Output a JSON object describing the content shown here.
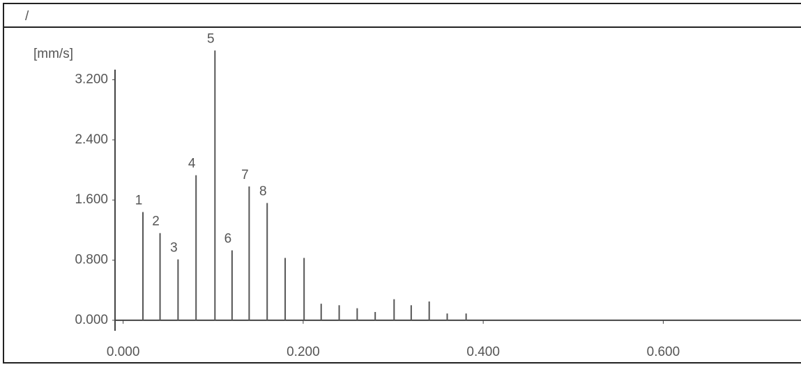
{
  "chart_data": {
    "type": "spectrum",
    "corner_text": "/",
    "y_label": "[mm/s]",
    "x": [
      0.022,
      0.041,
      0.061,
      0.081,
      0.102,
      0.121,
      0.14,
      0.16,
      0.18,
      0.201,
      0.22,
      0.24,
      0.26,
      0.28,
      0.301,
      0.32,
      0.34,
      0.36,
      0.381
    ],
    "values": [
      1.44,
      1.16,
      0.81,
      1.93,
      3.59,
      0.93,
      1.78,
      1.56,
      0.83,
      0.83,
      0.22,
      0.2,
      0.16,
      0.11,
      0.28,
      0.2,
      0.25,
      0.09,
      0.09
    ],
    "peak_labels": [
      "1",
      "2",
      "3",
      "4",
      "5",
      "6",
      "7",
      "8",
      null,
      null,
      null,
      null,
      null,
      null,
      null,
      null,
      null,
      null,
      null
    ],
    "color": "#555555",
    "xlim": [
      -0.009,
      0.753
    ],
    "ylim": [
      -0.14,
      3.9
    ],
    "xticks": [
      {
        "value": 0,
        "label": "0.000"
      },
      {
        "value": 0.2,
        "label": "0.200"
      },
      {
        "value": 0.4,
        "label": "0.400"
      },
      {
        "value": 0.6,
        "label": "0.600"
      }
    ],
    "yticks": [
      {
        "value": 0,
        "label": "0.000"
      },
      {
        "value": 0.8,
        "label": "0.800"
      },
      {
        "value": 1.6,
        "label": "1.600"
      },
      {
        "value": 2.4,
        "label": "2.400"
      },
      {
        "value": 3.2,
        "label": "3.200"
      }
    ]
  }
}
